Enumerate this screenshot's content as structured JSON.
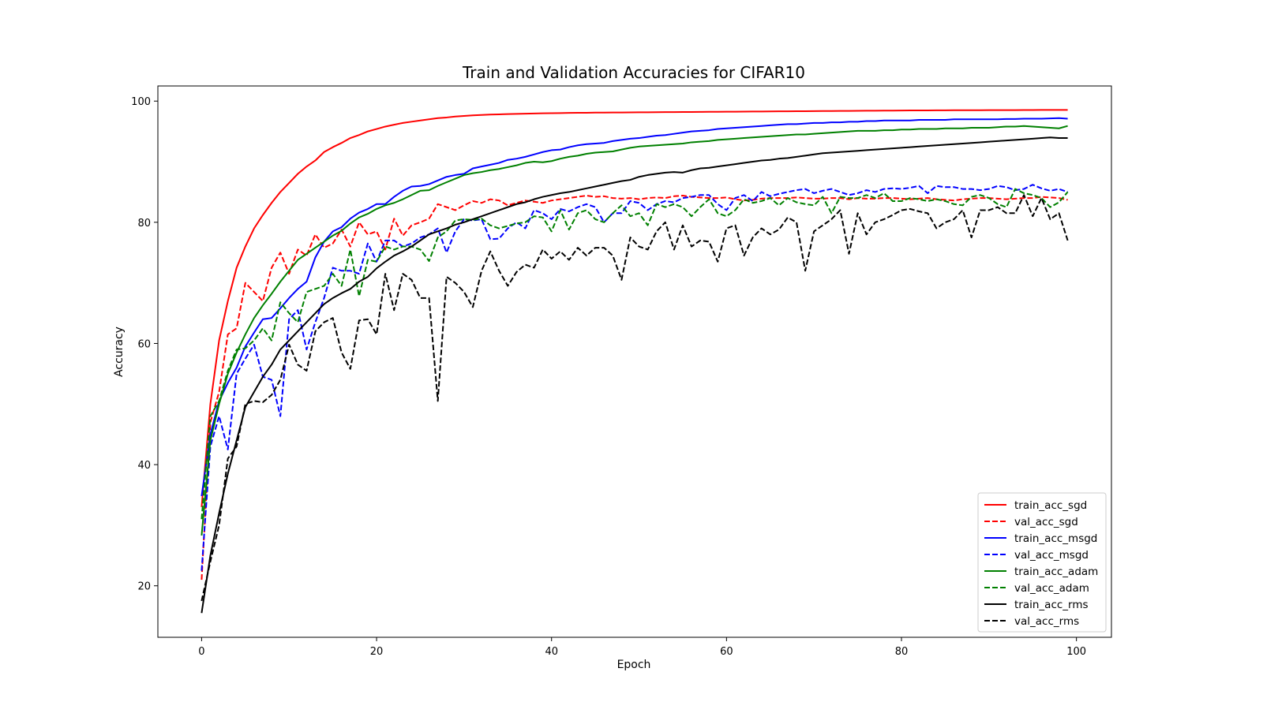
{
  "chart_data": {
    "type": "line",
    "title": "Train and Validation Accuracies for CIFAR10",
    "xlabel": "Epoch",
    "ylabel": "Accuracy",
    "xlim": [
      -5,
      104
    ],
    "ylim": [
      11.5,
      102.5
    ],
    "xticks": [
      0,
      20,
      40,
      60,
      80,
      100
    ],
    "yticks": [
      20,
      40,
      60,
      80,
      100
    ],
    "grid": false,
    "legend_position": "lower right",
    "series": [
      {
        "name": "train_acc_sgd",
        "color": "#ff0000",
        "dash": "solid",
        "values": [
          33.0,
          50.0,
          60.5,
          67.0,
          72.5,
          76.0,
          79.0,
          81.2,
          83.2,
          85.0,
          86.5,
          88.0,
          89.2,
          90.2,
          91.6,
          92.4,
          93.1,
          93.9,
          94.4,
          95.0,
          95.4,
          95.8,
          96.1,
          96.4,
          96.6,
          96.8,
          97.0,
          97.2,
          97.3,
          97.45,
          97.55,
          97.65,
          97.72,
          97.78,
          97.82,
          97.86,
          97.9,
          97.93,
          97.96,
          97.99,
          98.01,
          98.03,
          98.05,
          98.07,
          98.08,
          98.1,
          98.11,
          98.12,
          98.13,
          98.14,
          98.15,
          98.16,
          98.17,
          98.18,
          98.19,
          98.2,
          98.21,
          98.22,
          98.23,
          98.24,
          98.25,
          98.26,
          98.27,
          98.28,
          98.29,
          98.3,
          98.31,
          98.32,
          98.33,
          98.34,
          98.35,
          98.36,
          98.37,
          98.38,
          98.39,
          98.4,
          98.41,
          98.42,
          98.43,
          98.44,
          98.45,
          98.46,
          98.47,
          98.47,
          98.48,
          98.48,
          98.49,
          98.49,
          98.5,
          98.5,
          98.51,
          98.51,
          98.52,
          98.52,
          98.53,
          98.53,
          98.54,
          98.54,
          98.55,
          98.55
        ]
      },
      {
        "name": "val_acc_sgd",
        "color": "#ff0000",
        "dash": "dashed",
        "values": [
          21.0,
          47.0,
          52.0,
          61.5,
          62.5,
          70.0,
          68.5,
          67.0,
          72.5,
          75.0,
          71.5,
          75.5,
          74.5,
          78.0,
          75.8,
          76.5,
          78.8,
          76.0,
          80.0,
          78.0,
          78.5,
          75.5,
          80.6,
          77.8,
          79.5,
          80.0,
          80.6,
          83.0,
          82.5,
          82.0,
          82.8,
          83.5,
          83.2,
          83.8,
          83.6,
          82.8,
          83.2,
          83.6,
          83.4,
          83.2,
          83.6,
          83.8,
          84.0,
          84.2,
          84.4,
          84.2,
          84.3,
          84.0,
          83.9,
          84.0,
          83.8,
          84.0,
          84.1,
          84.0,
          84.3,
          84.4,
          84.2,
          84.1,
          84.0,
          84.0,
          84.1,
          83.8,
          83.6,
          83.7,
          83.9,
          84.0,
          84.0,
          84.0,
          84.1,
          84.0,
          83.9,
          83.9,
          84.0,
          84.0,
          83.8,
          84.0,
          83.9,
          83.9,
          84.0,
          84.0,
          83.9,
          83.8,
          83.9,
          84.0,
          83.8,
          83.7,
          83.6,
          83.8,
          83.9,
          84.0,
          84.0,
          83.9,
          83.8,
          83.9,
          84.0,
          84.0,
          84.2,
          84.1,
          84.0,
          83.7
        ]
      },
      {
        "name": "train_acc_msgd",
        "color": "#0000ff",
        "dash": "solid",
        "values": [
          34.8,
          45.0,
          50.5,
          53.5,
          56.0,
          59.5,
          61.8,
          64.0,
          64.2,
          65.8,
          67.5,
          69.0,
          70.2,
          74.2,
          76.8,
          78.5,
          79.2,
          80.6,
          81.6,
          82.2,
          83.0,
          83.0,
          84.2,
          85.2,
          85.9,
          86.0,
          86.3,
          86.9,
          87.5,
          87.8,
          88.0,
          88.9,
          89.2,
          89.5,
          89.8,
          90.3,
          90.5,
          90.8,
          91.2,
          91.6,
          91.9,
          92.0,
          92.4,
          92.7,
          92.9,
          93.0,
          93.1,
          93.4,
          93.6,
          93.8,
          93.9,
          94.1,
          94.3,
          94.4,
          94.6,
          94.8,
          95.0,
          95.1,
          95.2,
          95.4,
          95.5,
          95.6,
          95.7,
          95.8,
          95.9,
          96.0,
          96.1,
          96.2,
          96.2,
          96.3,
          96.4,
          96.4,
          96.5,
          96.5,
          96.6,
          96.6,
          96.7,
          96.7,
          96.8,
          96.8,
          96.8,
          96.8,
          96.9,
          96.9,
          96.9,
          96.9,
          97.0,
          97.0,
          97.0,
          97.0,
          97.0,
          97.0,
          97.05,
          97.05,
          97.1,
          97.1,
          97.1,
          97.15,
          97.2,
          97.1
        ]
      },
      {
        "name": "val_acc_msgd",
        "color": "#0000ff",
        "dash": "dashed",
        "values": [
          22.5,
          43.0,
          48.0,
          42.5,
          55.0,
          57.5,
          59.8,
          54.5,
          54.0,
          48.0,
          64.0,
          65.5,
          59.0,
          63.5,
          67.5,
          72.5,
          72.0,
          72.0,
          71.5,
          76.5,
          73.5,
          77.0,
          77.0,
          76.0,
          76.5,
          77.5,
          78.0,
          79.0,
          75.0,
          78.5,
          80.5,
          80.3,
          80.5,
          77.2,
          77.3,
          79.0,
          80.0,
          79.0,
          82.0,
          81.5,
          80.5,
          82.2,
          81.8,
          82.5,
          83.0,
          82.5,
          80.0,
          81.5,
          81.5,
          83.5,
          83.2,
          82.0,
          83.0,
          83.5,
          83.3,
          84.0,
          84.2,
          84.5,
          84.5,
          83.0,
          82.0,
          84.0,
          84.5,
          83.5,
          85.0,
          84.3,
          84.7,
          85.0,
          85.3,
          85.5,
          84.8,
          85.2,
          85.5,
          85.0,
          84.5,
          84.8,
          85.3,
          85.0,
          85.5,
          85.6,
          85.5,
          85.7,
          86.0,
          84.8,
          86.0,
          85.8,
          85.8,
          85.5,
          85.5,
          85.3,
          85.5,
          86.0,
          85.8,
          85.3,
          85.5,
          86.2,
          85.6,
          85.2,
          85.5,
          85.0
        ]
      },
      {
        "name": "train_acc_adam",
        "color": "#008000",
        "dash": "solid",
        "values": [
          28.3,
          44.0,
          50.0,
          55.0,
          58.5,
          61.5,
          64.2,
          66.3,
          68.2,
          70.2,
          72.0,
          73.8,
          74.8,
          75.8,
          76.8,
          77.8,
          78.6,
          79.8,
          80.8,
          81.4,
          82.2,
          82.8,
          83.2,
          83.8,
          84.5,
          85.2,
          85.3,
          86.0,
          86.6,
          87.2,
          87.8,
          88.1,
          88.3,
          88.6,
          88.8,
          89.1,
          89.4,
          89.8,
          90.0,
          89.9,
          90.1,
          90.5,
          90.8,
          91.0,
          91.3,
          91.5,
          91.6,
          91.7,
          92.0,
          92.3,
          92.5,
          92.6,
          92.7,
          92.8,
          92.9,
          93.0,
          93.2,
          93.3,
          93.4,
          93.6,
          93.7,
          93.8,
          93.9,
          94.0,
          94.1,
          94.2,
          94.3,
          94.4,
          94.5,
          94.5,
          94.6,
          94.7,
          94.8,
          94.9,
          95.0,
          95.1,
          95.1,
          95.1,
          95.2,
          95.2,
          95.3,
          95.3,
          95.4,
          95.4,
          95.4,
          95.5,
          95.5,
          95.5,
          95.6,
          95.6,
          95.6,
          95.7,
          95.8,
          95.8,
          95.9,
          95.8,
          95.7,
          95.6,
          95.5,
          95.9
        ]
      },
      {
        "name": "val_acc_adam",
        "color": "#008000",
        "dash": "dashed",
        "values": [
          31.0,
          48.0,
          50.5,
          55.5,
          59.0,
          59.2,
          60.5,
          62.5,
          60.5,
          66.8,
          65.0,
          63.5,
          68.5,
          69.0,
          69.5,
          71.5,
          69.5,
          75.5,
          67.8,
          73.8,
          73.5,
          76.0,
          75.5,
          76.0,
          76.0,
          75.5,
          73.6,
          77.5,
          78.5,
          80.3,
          80.5,
          80.4,
          80.6,
          79.5,
          79.0,
          79.4,
          79.8,
          80.0,
          81.0,
          80.8,
          78.5,
          82.0,
          78.8,
          81.5,
          82.0,
          80.5,
          80.0,
          81.5,
          82.8,
          81.0,
          81.5,
          79.5,
          83.0,
          82.5,
          83.0,
          82.5,
          81.0,
          82.5,
          83.8,
          81.5,
          81.0,
          82.0,
          83.8,
          83.2,
          83.5,
          84.0,
          82.8,
          84.0,
          83.3,
          83.0,
          82.8,
          84.2,
          81.5,
          84.2,
          84.0,
          84.0,
          84.5,
          84.0,
          84.8,
          83.5,
          83.5,
          84.0,
          83.8,
          83.5,
          83.8,
          83.5,
          83.0,
          82.8,
          84.2,
          84.5,
          84.0,
          83.0,
          82.5,
          85.5,
          84.8,
          84.5,
          84.0,
          82.5,
          83.3,
          85.0
        ]
      },
      {
        "name": "train_acc_rms",
        "color": "#000000",
        "dash": "solid",
        "values": [
          15.5,
          25.0,
          32.0,
          38.5,
          44.0,
          49.5,
          52.0,
          54.5,
          56.5,
          59.0,
          60.5,
          62.0,
          63.5,
          65.0,
          66.5,
          67.5,
          68.3,
          69.0,
          70.2,
          71.0,
          72.4,
          73.5,
          74.5,
          75.2,
          76.0,
          77.0,
          78.0,
          78.5,
          79.0,
          79.6,
          80.0,
          80.5,
          81.0,
          81.5,
          82.0,
          82.5,
          83.0,
          83.3,
          83.8,
          84.2,
          84.5,
          84.8,
          85.0,
          85.3,
          85.6,
          85.9,
          86.2,
          86.5,
          86.8,
          87.0,
          87.5,
          87.8,
          88.0,
          88.2,
          88.3,
          88.2,
          88.6,
          88.9,
          89.0,
          89.2,
          89.4,
          89.6,
          89.8,
          90.0,
          90.2,
          90.3,
          90.5,
          90.6,
          90.8,
          91.0,
          91.2,
          91.4,
          91.5,
          91.6,
          91.7,
          91.8,
          91.9,
          92.0,
          92.1,
          92.2,
          92.3,
          92.4,
          92.5,
          92.6,
          92.7,
          92.8,
          92.9,
          93.0,
          93.1,
          93.2,
          93.3,
          93.4,
          93.5,
          93.6,
          93.7,
          93.8,
          93.9,
          94.0,
          93.9,
          93.9
        ]
      },
      {
        "name": "val_acc_rms",
        "color": "#000000",
        "dash": "dashed",
        "values": [
          17.5,
          24.0,
          30.0,
          41.0,
          43.0,
          50.0,
          50.5,
          50.3,
          51.5,
          54.0,
          59.8,
          56.5,
          55.5,
          62.0,
          63.5,
          64.2,
          58.5,
          55.8,
          63.8,
          64.0,
          61.5,
          71.5,
          65.5,
          71.5,
          70.5,
          67.5,
          67.5,
          50.5,
          71.0,
          70.0,
          68.5,
          66.0,
          72.0,
          75.2,
          72.0,
          69.5,
          71.8,
          73.0,
          72.5,
          75.5,
          74.0,
          75.2,
          73.8,
          75.8,
          74.5,
          75.8,
          75.8,
          74.5,
          70.5,
          77.5,
          76.0,
          75.5,
          78.5,
          80.0,
          75.5,
          79.5,
          76.0,
          77.0,
          76.8,
          73.5,
          79.0,
          79.5,
          74.5,
          77.5,
          79.0,
          78.0,
          78.8,
          80.8,
          80.0,
          72.0,
          78.5,
          79.5,
          80.5,
          82.0,
          74.8,
          81.5,
          78.0,
          80.0,
          80.5,
          81.2,
          82.0,
          82.2,
          81.8,
          81.5,
          79.0,
          80.0,
          80.5,
          82.0,
          77.5,
          82.0,
          82.0,
          82.5,
          81.5,
          81.5,
          84.5,
          81.0,
          84.0,
          80.5,
          81.5,
          77.0
        ]
      }
    ]
  }
}
